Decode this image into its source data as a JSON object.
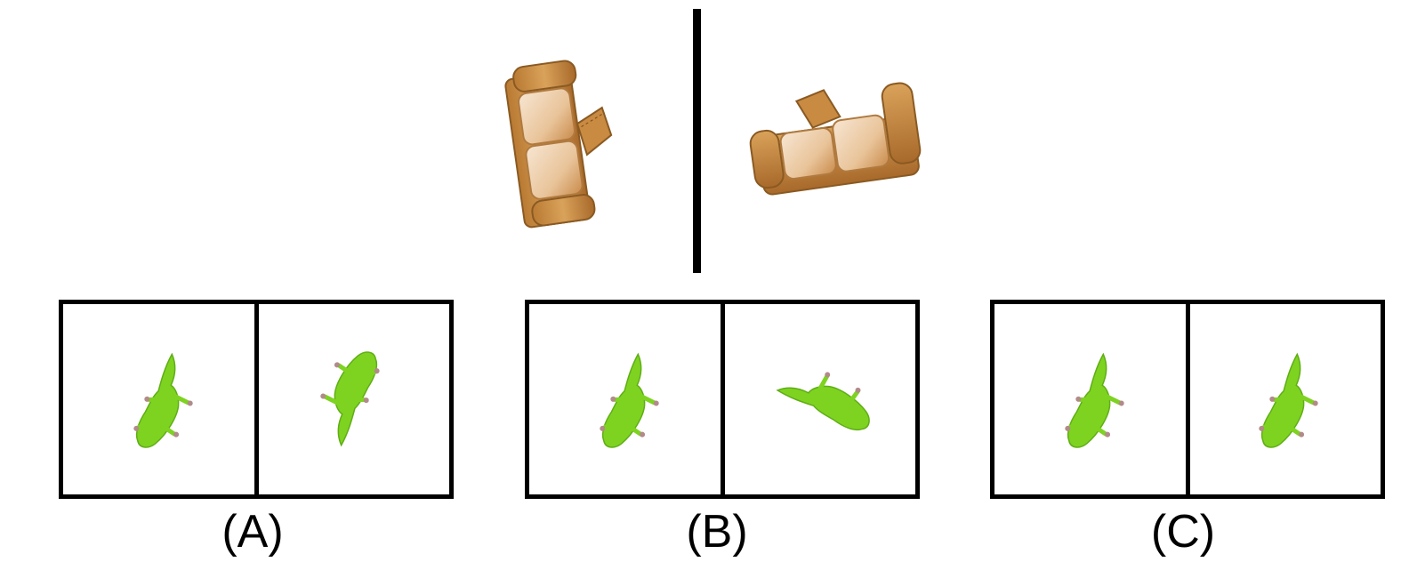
{
  "reference": {
    "left_object": "sofa-top-view",
    "right_object": "sofa-rotated-view",
    "divider": "vertical-black-line"
  },
  "options": [
    {
      "label": "(A)",
      "left_object": "gecko-icon",
      "right_object": "gecko-icon"
    },
    {
      "label": "(B)",
      "left_object": "gecko-icon",
      "right_object": "gecko-icon"
    },
    {
      "label": "(C)",
      "left_object": "gecko-icon",
      "right_object": "gecko-icon"
    }
  ],
  "colors": {
    "gecko_green": "#7ed321",
    "gecko_dark": "#5fae14",
    "gecko_toes": "#b28a8a",
    "sofa_wood": "#c68a3f",
    "sofa_light": "#f2d6b3",
    "frame": "#000000"
  }
}
